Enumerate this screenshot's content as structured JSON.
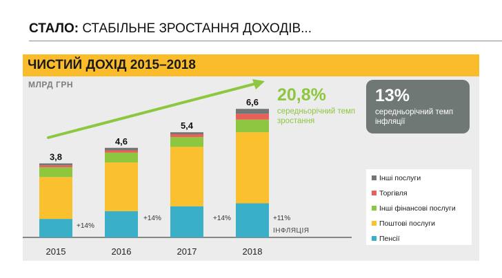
{
  "headline": {
    "bold": "СТАЛО:",
    "rest": " СТАБІЛЬНЕ ЗРОСТАННЯ ДОХОДІВ..."
  },
  "growth": {
    "value": "20,8%",
    "label": "середньорічний темп зростання"
  },
  "inflation_box": {
    "value": "13%",
    "label": "середньорічний темп інфляції"
  },
  "colors": {
    "banner": "#fbbc2c",
    "panel": "#ececec",
    "growth_green": "#8dc63f",
    "inflation_box": "#6f7874"
  },
  "chart_data": {
    "type": "bar",
    "stacked": true,
    "title": "ЧИСТИЙ ДОХІД 2015–2018",
    "ylabel": "МЛРД ГРН",
    "xlabel": "",
    "ylim": [
      0,
      7.2
    ],
    "grid": false,
    "legend_position": "bottom-right",
    "categories": [
      "2015",
      "2016",
      "2017",
      "2018"
    ],
    "totals": [
      3.8,
      4.6,
      5.4,
      6.6
    ],
    "total_labels": [
      "3,8",
      "4,6",
      "5,4",
      "6,6"
    ],
    "series": [
      {
        "name": "Пенсії",
        "color": "#3ab0c8",
        "values": [
          0.95,
          1.35,
          1.6,
          1.75
        ]
      },
      {
        "name": "Поштові послуги",
        "color": "#fbc02d",
        "values": [
          2.15,
          2.5,
          3.05,
          3.65
        ]
      },
      {
        "name": "Інші фінансові послуги",
        "color": "#8dc63f",
        "values": [
          0.5,
          0.5,
          0.5,
          0.65
        ]
      },
      {
        "name": "Торгівля",
        "color": "#e8605a",
        "values": [
          0.1,
          0.12,
          0.15,
          0.3
        ]
      },
      {
        "name": "Інші послуги",
        "color": "#6f7874",
        "values": [
          0.1,
          0.13,
          0.1,
          0.25
        ]
      }
    ],
    "legend_order": [
      "Інші послуги",
      "Торгівля",
      "Інші фінансові послуги",
      "Поштові послуги",
      "Пенсії"
    ],
    "annotations": [
      {
        "after_category": "2015",
        "text": "+14%"
      },
      {
        "after_category": "2016",
        "text": "+14%"
      },
      {
        "after_category": "2017",
        "text": "+14%"
      },
      {
        "after_category": "2018",
        "text": "+11%"
      },
      {
        "after_category": "2018",
        "text": "ІНФЛЯЦІЯ"
      }
    ],
    "trend_arrow": {
      "from_category": "2015",
      "to_category": "2018",
      "color": "#8dc63f"
    }
  }
}
